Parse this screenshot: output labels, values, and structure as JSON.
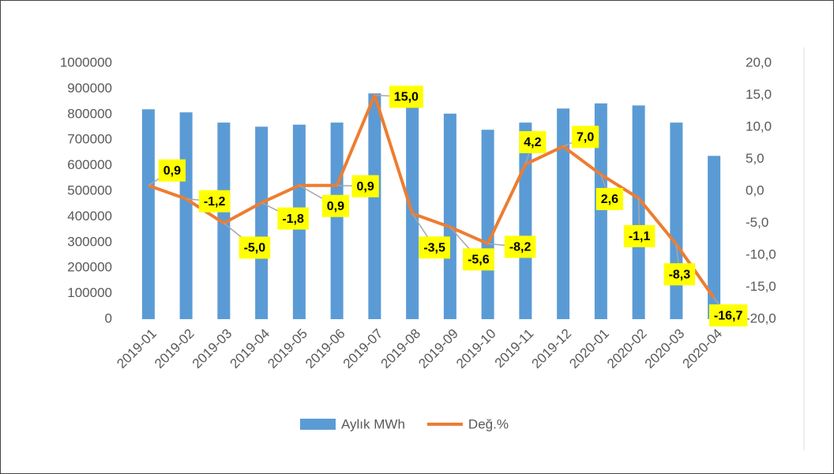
{
  "chart_data": {
    "type": "bar-line",
    "categories": [
      "2019-01",
      "2019-02",
      "2019-03",
      "2019-04",
      "2019-05",
      "2019-06",
      "2019-07",
      "2019-08",
      "2019-09",
      "2019-10",
      "2019-11",
      "2019-12",
      "2020-01",
      "2020-02",
      "2020-03",
      "2020-04"
    ],
    "series": [
      {
        "name": "Aylık MWh",
        "type": "bar",
        "color": "#5b9bd5",
        "values": [
          820000,
          808000,
          768000,
          752000,
          760000,
          768000,
          882000,
          830000,
          803000,
          740000,
          768000,
          823000,
          843000,
          835000,
          768000,
          638000
        ]
      },
      {
        "name": "Değ.%",
        "type": "line",
        "axis": "y2",
        "color": "#ed7d31",
        "values": [
          0.9,
          -1.2,
          -5.0,
          -1.8,
          0.9,
          0.9,
          15.0,
          -3.5,
          -5.6,
          -8.2,
          4.2,
          7.0,
          2.6,
          -1.1,
          -8.3,
          -16.7
        ],
        "value_labels": [
          "0,9",
          "-1,2",
          "-5,0",
          "-1,8",
          "0,9",
          "0,9",
          "15,0",
          "-3,5",
          "-5,6",
          "-8,2",
          "4,2",
          "7,0",
          "2,6",
          "-1,1",
          "-8,3",
          "-16,7"
        ]
      }
    ],
    "ylim": [
      0,
      1000000
    ],
    "yticks": [
      0,
      100000,
      200000,
      300000,
      400000,
      500000,
      600000,
      700000,
      800000,
      900000,
      1000000
    ],
    "y2lim": [
      -20,
      20
    ],
    "y2ticks": [
      {
        "value": -20,
        "label": "-20,0"
      },
      {
        "value": -15,
        "label": "-15,0"
      },
      {
        "value": -10,
        "label": "-10,0"
      },
      {
        "value": -5,
        "label": "-5,0"
      },
      {
        "value": 0,
        "label": "0,0"
      },
      {
        "value": 5,
        "label": "5,0"
      },
      {
        "value": 10,
        "label": "10,0"
      },
      {
        "value": 15,
        "label": "15,0"
      },
      {
        "value": 20,
        "label": "20,0"
      }
    ],
    "legend": "bottom"
  }
}
